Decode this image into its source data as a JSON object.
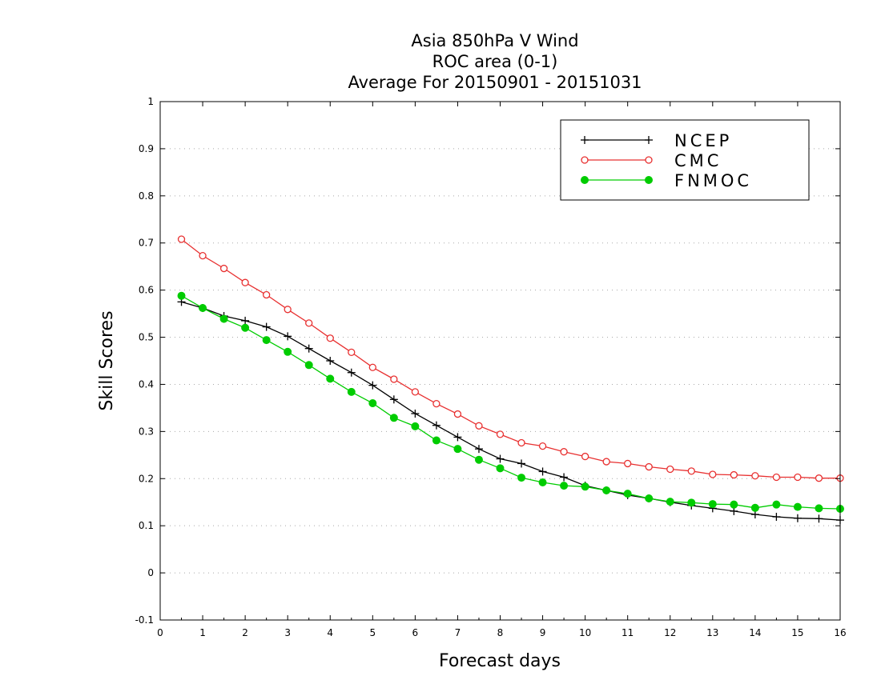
{
  "chart_data": {
    "type": "line",
    "title_lines": [
      "Asia 850hPa V Wind",
      "ROC area (0-1)",
      "Average For 20150901 - 20151031"
    ],
    "xlabel": "Forecast days",
    "ylabel": "Skill Scores",
    "xlim": [
      0,
      16
    ],
    "ylim": [
      -0.1,
      1
    ],
    "x_ticks": [
      0,
      1,
      2,
      3,
      4,
      5,
      6,
      7,
      8,
      9,
      10,
      11,
      12,
      13,
      14,
      15,
      16
    ],
    "x_tick_labels": [
      "0",
      "1",
      "2",
      "3",
      "4",
      "5",
      "6",
      "7",
      "8",
      "9",
      "10",
      "11",
      "12",
      "13",
      "14",
      "15",
      "16"
    ],
    "y_ticks": [
      -0.1,
      0,
      0.1,
      0.2,
      0.3,
      0.4,
      0.5,
      0.6,
      0.7,
      0.8,
      0.9,
      1
    ],
    "y_tick_labels": [
      "-0.1",
      "0",
      "0.1",
      "0.2",
      "0.3",
      "0.4",
      "0.5",
      "0.6",
      "0.7",
      "0.8",
      "0.9",
      "1"
    ],
    "grid": "horizontal dotted",
    "legend_position": "top-right",
    "x": [
      0.5,
      1,
      1.5,
      2,
      2.5,
      3,
      3.5,
      4,
      4.5,
      5,
      5.5,
      6,
      6.5,
      7,
      7.5,
      8,
      8.5,
      9,
      9.5,
      10,
      10.5,
      11,
      11.5,
      12,
      12.5,
      13,
      13.5,
      14,
      14.5,
      15,
      15.5,
      16
    ],
    "series": [
      {
        "name": "NCEP",
        "color": "#000000",
        "marker": "plus",
        "values": [
          0.575,
          0.562,
          0.545,
          0.535,
          0.522,
          0.502,
          0.476,
          0.45,
          0.425,
          0.398,
          0.368,
          0.338,
          0.313,
          0.288,
          0.263,
          0.242,
          0.232,
          0.215,
          0.203,
          0.185,
          0.175,
          0.165,
          0.158,
          0.15,
          0.143,
          0.137,
          0.131,
          0.124,
          0.119,
          0.116,
          0.115,
          0.112
        ]
      },
      {
        "name": "CMC",
        "color": "#e83030",
        "marker": "open-circle",
        "values": [
          0.708,
          0.673,
          0.646,
          0.616,
          0.59,
          0.559,
          0.53,
          0.498,
          0.468,
          0.436,
          0.411,
          0.384,
          0.359,
          0.337,
          0.312,
          0.294,
          0.276,
          0.269,
          0.257,
          0.247,
          0.236,
          0.232,
          0.225,
          0.22,
          0.216,
          0.209,
          0.208,
          0.206,
          0.203,
          0.203,
          0.201,
          0.201
        ]
      },
      {
        "name": "FNMOC",
        "color": "#00cc00",
        "marker": "filled-circle",
        "values": [
          0.588,
          0.562,
          0.539,
          0.52,
          0.494,
          0.469,
          0.441,
          0.412,
          0.384,
          0.36,
          0.329,
          0.311,
          0.281,
          0.263,
          0.24,
          0.222,
          0.202,
          0.192,
          0.185,
          0.183,
          0.175,
          0.168,
          0.158,
          0.151,
          0.149,
          0.146,
          0.145,
          0.138,
          0.145,
          0.14,
          0.137,
          0.136
        ]
      }
    ]
  }
}
